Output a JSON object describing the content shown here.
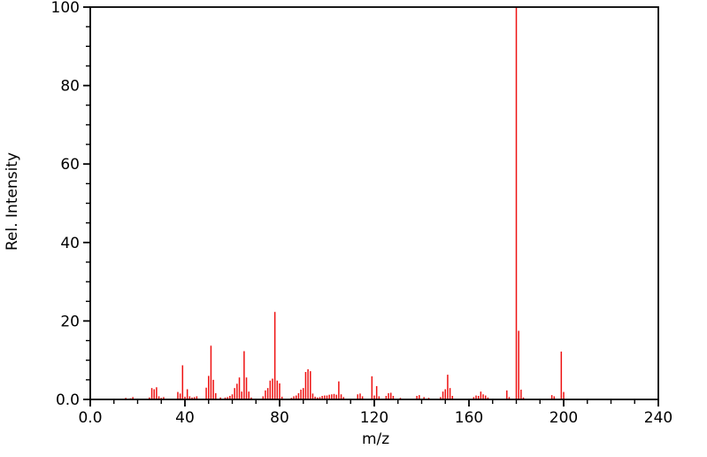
{
  "chart_data": {
    "type": "bar",
    "subtype": "mass-spectrum-stick-plot",
    "title": "",
    "xlabel": "m/z",
    "ylabel": "Rel. Intensity",
    "xlim": [
      0,
      240
    ],
    "ylim": [
      0,
      100
    ],
    "grid": "off",
    "frame": "full-box",
    "x_major_ticks": {
      "values": [
        0,
        40,
        80,
        120,
        160,
        200,
        240
      ],
      "labels": [
        "0.0",
        "40",
        "80",
        "120",
        "160",
        "200",
        "240"
      ]
    },
    "x_minor_step": 10,
    "y_major_ticks": {
      "values": [
        0,
        20,
        40,
        60,
        80,
        100
      ],
      "labels": [
        "0.0",
        "20",
        "40",
        "60",
        "80",
        "100"
      ]
    },
    "y_minor_step": 5,
    "peak_color": "#ee1111",
    "axis_color": "#000000",
    "peaks": [
      [
        15,
        0.4
      ],
      [
        17,
        0.3
      ],
      [
        18,
        0.6
      ],
      [
        25,
        0.5
      ],
      [
        26,
        2.9
      ],
      [
        27,
        2.6
      ],
      [
        28,
        3.1
      ],
      [
        29,
        0.8
      ],
      [
        30,
        0.4
      ],
      [
        31,
        0.6
      ],
      [
        37,
        1.9
      ],
      [
        38,
        1.5
      ],
      [
        39,
        8.7
      ],
      [
        40,
        0.7
      ],
      [
        41,
        2.6
      ],
      [
        42,
        0.8
      ],
      [
        43,
        0.5
      ],
      [
        44,
        0.6
      ],
      [
        45,
        0.8
      ],
      [
        49,
        3.0
      ],
      [
        50,
        6.0
      ],
      [
        51,
        13.7
      ],
      [
        52,
        5.0
      ],
      [
        53,
        1.6
      ],
      [
        55,
        0.5
      ],
      [
        57,
        0.5
      ],
      [
        58,
        0.6
      ],
      [
        59,
        0.9
      ],
      [
        60,
        1.3
      ],
      [
        61,
        2.9
      ],
      [
        62,
        4.0
      ],
      [
        63,
        5.6
      ],
      [
        64,
        2.0
      ],
      [
        65,
        12.3
      ],
      [
        66,
        5.6
      ],
      [
        67,
        2.0
      ],
      [
        68,
        0.5
      ],
      [
        73,
        0.8
      ],
      [
        74,
        2.3
      ],
      [
        75,
        2.9
      ],
      [
        76,
        4.8
      ],
      [
        77,
        5.3
      ],
      [
        78,
        22.3
      ],
      [
        79,
        4.8
      ],
      [
        80,
        4.1
      ],
      [
        81,
        0.7
      ],
      [
        85,
        0.4
      ],
      [
        86,
        0.8
      ],
      [
        87,
        1.0
      ],
      [
        88,
        1.6
      ],
      [
        89,
        2.5
      ],
      [
        90,
        2.9
      ],
      [
        91,
        7.0
      ],
      [
        92,
        7.7
      ],
      [
        93,
        7.2
      ],
      [
        94,
        1.5
      ],
      [
        95,
        0.7
      ],
      [
        96,
        0.5
      ],
      [
        97,
        0.6
      ],
      [
        98,
        0.9
      ],
      [
        99,
        1.0
      ],
      [
        100,
        1.0
      ],
      [
        101,
        1.2
      ],
      [
        102,
        1.3
      ],
      [
        103,
        1.4
      ],
      [
        104,
        1.2
      ],
      [
        105,
        4.6
      ],
      [
        106,
        1.3
      ],
      [
        107,
        0.6
      ],
      [
        113,
        1.3
      ],
      [
        114,
        1.5
      ],
      [
        115,
        0.8
      ],
      [
        119,
        5.9
      ],
      [
        120,
        1.0
      ],
      [
        121,
        3.4
      ],
      [
        122,
        0.8
      ],
      [
        125,
        0.9
      ],
      [
        126,
        1.6
      ],
      [
        127,
        1.7
      ],
      [
        128,
        0.9
      ],
      [
        131,
        0.4
      ],
      [
        138,
        0.9
      ],
      [
        139,
        1.1
      ],
      [
        141,
        0.6
      ],
      [
        143,
        0.4
      ],
      [
        148,
        0.6
      ],
      [
        149,
        2.0
      ],
      [
        150,
        2.6
      ],
      [
        151,
        6.3
      ],
      [
        152,
        2.9
      ],
      [
        153,
        0.9
      ],
      [
        162,
        0.6
      ],
      [
        163,
        1.0
      ],
      [
        164,
        0.9
      ],
      [
        165,
        2.0
      ],
      [
        166,
        1.3
      ],
      [
        167,
        1.0
      ],
      [
        168,
        0.5
      ],
      [
        176,
        2.3
      ],
      [
        177,
        0.6
      ],
      [
        180,
        100
      ],
      [
        181,
        17.5
      ],
      [
        182,
        2.5
      ],
      [
        183,
        0.5
      ],
      [
        195,
        1.1
      ],
      [
        196,
        0.8
      ],
      [
        199,
        12.2
      ],
      [
        200,
        1.9
      ]
    ]
  },
  "layout_hints": {
    "legend": "none",
    "tick_direction": "out"
  }
}
